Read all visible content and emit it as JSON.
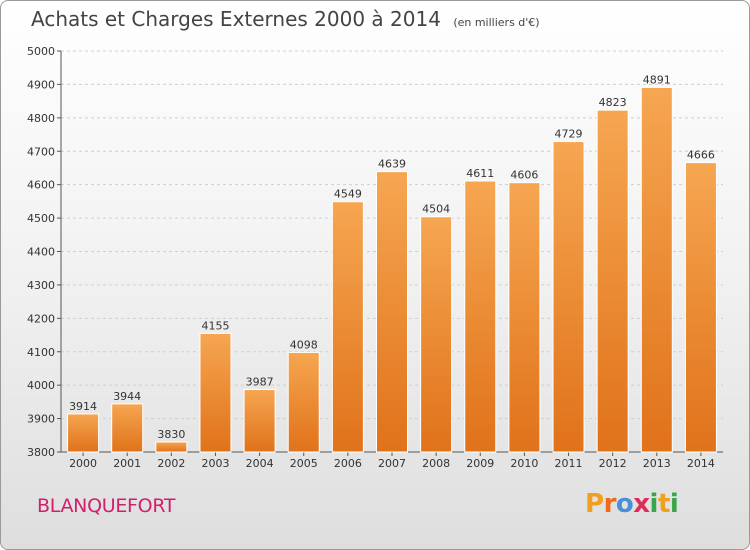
{
  "title": "Achats et Charges Externes 2000 à 2014",
  "subtitle": "(en milliers d'€)",
  "city": "BLANQUEFORT",
  "logo": {
    "letters": [
      "P",
      "r",
      "o",
      "x",
      "i",
      "t",
      "i"
    ],
    "colors": [
      "#f0a020",
      "#ec6a1a",
      "#4a8fd8",
      "#e02b5a",
      "#3aa54a",
      "#f0a020",
      "#3aa54a"
    ]
  },
  "colors": {
    "bar_top": "#f6a651",
    "bar_bottom": "#e0721a",
    "grid": "#cfcfcf"
  },
  "chart_data": {
    "type": "bar",
    "title": "Achats et Charges Externes 2000 à 2014",
    "subtitle": "(en milliers d'€)",
    "categories": [
      "2000",
      "2001",
      "2002",
      "2003",
      "2004",
      "2005",
      "2006",
      "2007",
      "2008",
      "2009",
      "2010",
      "2011",
      "2012",
      "2013",
      "2014"
    ],
    "values": [
      3914,
      3944,
      3830,
      4155,
      3987,
      4098,
      4549,
      4639,
      4504,
      4611,
      4606,
      4729,
      4823,
      4891,
      4666
    ],
    "ylim": [
      3800,
      5000
    ],
    "yticks": [
      3800,
      3900,
      4000,
      4100,
      4200,
      4300,
      4400,
      4500,
      4600,
      4700,
      4800,
      4900,
      5000
    ],
    "grid": true,
    "xlabel": "",
    "ylabel": ""
  }
}
